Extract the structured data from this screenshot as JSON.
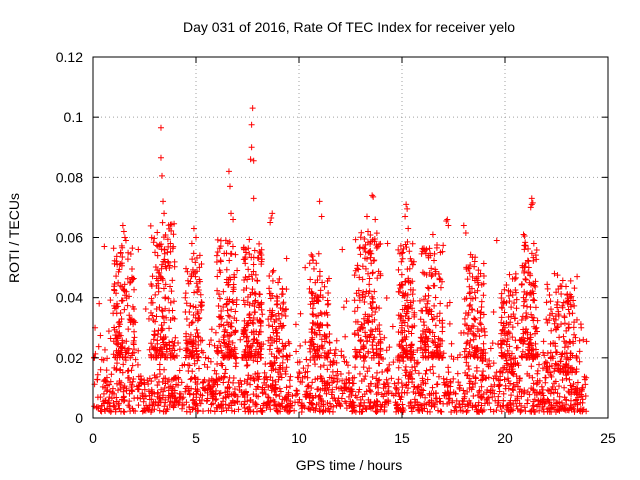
{
  "chart_data": {
    "type": "scatter",
    "title": "Day 031 of 2016, Rate Of TEC Index for receiver yelo",
    "xlabel": "GPS time / hours",
    "ylabel": "ROTI / TECUs",
    "xlim": [
      0,
      25
    ],
    "ylim": [
      0,
      0.12
    ],
    "x_ticks": [
      0,
      5,
      10,
      15,
      20,
      25
    ],
    "x_tick_labels": [
      "0",
      "5",
      "10",
      "15",
      "20",
      "25"
    ],
    "y_ticks": [
      0,
      0.02,
      0.04,
      0.06,
      0.08,
      0.1,
      0.12
    ],
    "y_tick_labels": [
      "0",
      "0.02",
      "0.04",
      "0.06",
      "0.08",
      "0.1",
      "0.12"
    ],
    "grid": true,
    "marker": "+",
    "color": "#ff0000",
    "series": [
      {
        "name": "ROTI",
        "points": [
          [
            3.3,
            0.0965
          ],
          [
            3.3,
            0.0865
          ],
          [
            3.35,
            0.0805
          ],
          [
            3.4,
            0.072
          ],
          [
            3.45,
            0.068
          ],
          [
            7.75,
            0.103
          ],
          [
            7.7,
            0.0975
          ],
          [
            7.7,
            0.09
          ],
          [
            7.65,
            0.086
          ],
          [
            7.8,
            0.0855
          ],
          [
            7.8,
            0.073
          ],
          [
            6.6,
            0.082
          ],
          [
            6.65,
            0.077
          ],
          [
            6.7,
            0.068
          ],
          [
            6.8,
            0.066
          ],
          [
            13.55,
            0.074
          ],
          [
            13.6,
            0.0735
          ],
          [
            13.3,
            0.067
          ],
          [
            13.35,
            0.062
          ],
          [
            13.7,
            0.066
          ],
          [
            15.2,
            0.071
          ],
          [
            15.25,
            0.0695
          ],
          [
            15.15,
            0.067
          ],
          [
            15.3,
            0.063
          ],
          [
            17.2,
            0.066
          ],
          [
            17.25,
            0.064
          ],
          [
            17.15,
            0.0655
          ],
          [
            21.3,
            0.073
          ],
          [
            21.35,
            0.0715
          ],
          [
            21.25,
            0.07
          ],
          [
            21.3,
            0.071
          ],
          [
            11.0,
            0.072
          ],
          [
            11.1,
            0.067
          ],
          [
            8.7,
            0.068
          ],
          [
            8.65,
            0.0665
          ],
          [
            8.6,
            0.065
          ],
          [
            1.45,
            0.064
          ],
          [
            1.5,
            0.062
          ],
          [
            1.55,
            0.06
          ],
          [
            1.6,
            0.059
          ],
          [
            0.55,
            0.057
          ],
          [
            4.9,
            0.063
          ],
          [
            5.0,
            0.06
          ],
          [
            4.8,
            0.058
          ],
          [
            16.5,
            0.061
          ],
          [
            16.7,
            0.0575
          ],
          [
            18.0,
            0.064
          ],
          [
            18.1,
            0.0615
          ],
          [
            19.6,
            0.059
          ],
          [
            20.9,
            0.061
          ],
          [
            20.95,
            0.0605
          ],
          [
            21.4,
            0.058
          ],
          [
            22.4,
            0.048
          ],
          [
            22.55,
            0.0475
          ],
          [
            23.5,
            0.047
          ],
          [
            2.2,
            0.056
          ],
          [
            9.4,
            0.053
          ],
          [
            12.1,
            0.056
          ],
          [
            14.3,
            0.058
          ],
          [
            10.3,
            0.05
          ],
          [
            0.3,
            0.038
          ],
          [
            0.1,
            0.03
          ],
          [
            0.05,
            0.02
          ],
          [
            23.7,
            0.03
          ],
          [
            23.8,
            0.026
          ]
        ],
        "bands": [
          {
            "x_start": 0.0,
            "x_end": 24.0,
            "y_min": 0.002,
            "y_max": 0.014,
            "count": 800
          },
          {
            "x_start": 0.0,
            "x_end": 24.0,
            "y_min": 0.004,
            "y_max": 0.026,
            "count": 600
          },
          {
            "x_start": 0.3,
            "x_end": 23.7,
            "y_min": 0.008,
            "y_max": 0.04,
            "count": 320
          },
          {
            "x_start": 1.0,
            "x_end": 2.0,
            "y_min": 0.02,
            "y_max": 0.058,
            "count": 120
          },
          {
            "x_start": 2.8,
            "x_end": 4.0,
            "y_min": 0.02,
            "y_max": 0.065,
            "count": 160
          },
          {
            "x_start": 4.5,
            "x_end": 5.3,
            "y_min": 0.02,
            "y_max": 0.056,
            "count": 90
          },
          {
            "x_start": 6.0,
            "x_end": 7.0,
            "y_min": 0.02,
            "y_max": 0.06,
            "count": 120
          },
          {
            "x_start": 7.3,
            "x_end": 8.2,
            "y_min": 0.02,
            "y_max": 0.062,
            "count": 140
          },
          {
            "x_start": 8.5,
            "x_end": 9.4,
            "y_min": 0.015,
            "y_max": 0.05,
            "count": 90
          },
          {
            "x_start": 10.5,
            "x_end": 11.5,
            "y_min": 0.02,
            "y_max": 0.055,
            "count": 110
          },
          {
            "x_start": 12.7,
            "x_end": 14.0,
            "y_min": 0.02,
            "y_max": 0.062,
            "count": 160
          },
          {
            "x_start": 14.8,
            "x_end": 15.6,
            "y_min": 0.02,
            "y_max": 0.06,
            "count": 120
          },
          {
            "x_start": 15.9,
            "x_end": 17.0,
            "y_min": 0.02,
            "y_max": 0.058,
            "count": 130
          },
          {
            "x_start": 18.0,
            "x_end": 19.0,
            "y_min": 0.02,
            "y_max": 0.055,
            "count": 110
          },
          {
            "x_start": 19.8,
            "x_end": 20.6,
            "y_min": 0.015,
            "y_max": 0.05,
            "count": 90
          },
          {
            "x_start": 20.8,
            "x_end": 21.6,
            "y_min": 0.02,
            "y_max": 0.06,
            "count": 110
          },
          {
            "x_start": 22.0,
            "x_end": 23.5,
            "y_min": 0.015,
            "y_max": 0.046,
            "count": 130
          }
        ]
      }
    ]
  }
}
